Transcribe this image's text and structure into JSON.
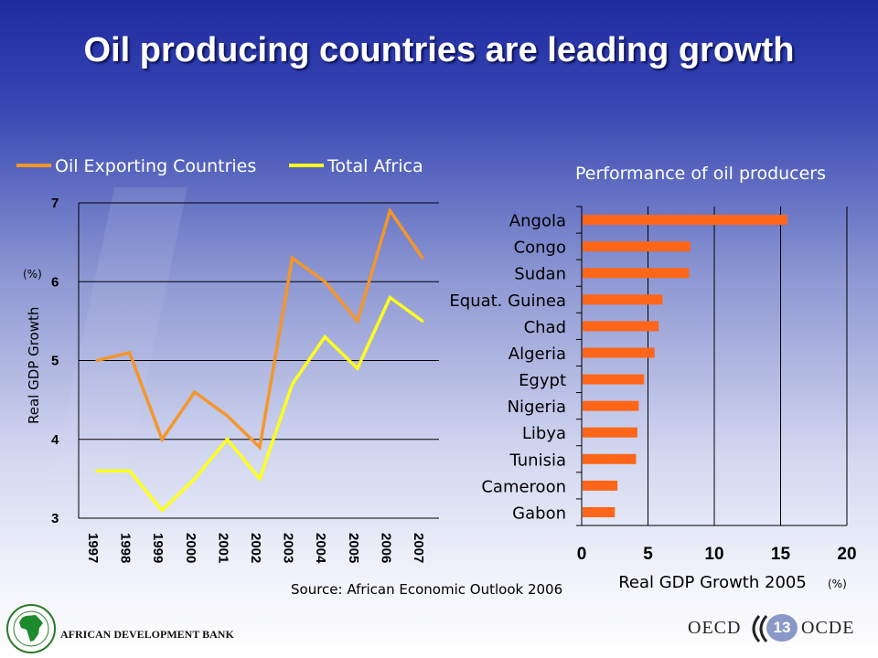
{
  "slide": {
    "title": "Oil producing countries are leading growth",
    "source": "Source: African Economic Outlook 2006",
    "footer_bank": "AFRICAN DEVELOPMENT BANK",
    "oecd_en": "OECD",
    "oecd_fr": "OCDE",
    "page_number": "13"
  },
  "colors": {
    "oil_series": "#f5962b",
    "africa_series": "#ffff1e",
    "bars": "#ff6619"
  },
  "chart_data": [
    {
      "type": "line",
      "x": [
        "1997",
        "1998",
        "1999",
        "2000",
        "2001",
        "2002",
        "2003",
        "2004",
        "2005",
        "2006",
        "2007"
      ],
      "series": [
        {
          "name": "Oil Exporting Countries",
          "color": "#f5962b",
          "values": [
            5.0,
            5.1,
            4.0,
            4.6,
            4.3,
            3.9,
            6.3,
            6.0,
            5.5,
            6.9,
            6.3
          ]
        },
        {
          "name": "Total Africa",
          "color": "#ffff1e",
          "values": [
            3.6,
            3.6,
            3.1,
            3.5,
            4.0,
            3.5,
            4.7,
            5.3,
            4.9,
            5.8,
            5.5
          ]
        }
      ],
      "ylabel": "Real GDP Growth",
      "yunit": "(%)",
      "ylim": [
        3,
        7
      ],
      "yticks": [
        "3",
        "4",
        "5",
        "6",
        "7"
      ],
      "grid": true,
      "legend": "top"
    },
    {
      "type": "bar",
      "orientation": "horizontal",
      "title": "Performance of oil producers",
      "categories": [
        "Angola",
        "Congo",
        "Sudan",
        "Equat. Guinea",
        "Chad",
        "Algeria",
        "Egypt",
        "Nigeria",
        "Libya",
        "Tunisia",
        "Cameroon",
        "Gabon"
      ],
      "values": [
        15.5,
        8.2,
        8.1,
        6.1,
        5.8,
        5.5,
        4.7,
        4.3,
        4.2,
        4.1,
        2.7,
        2.5
      ],
      "xlabel": "Real GDP Growth 2005",
      "xunit": "(%)",
      "xlim": [
        0,
        20
      ],
      "xticks": [
        "0",
        "5",
        "10",
        "15",
        "20"
      ],
      "grid": true
    }
  ]
}
